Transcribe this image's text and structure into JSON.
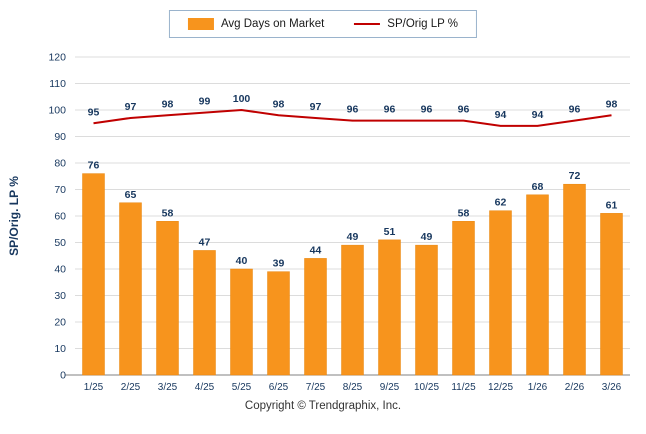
{
  "footer": "Copyright © Trendgraphix, Inc.",
  "colors": {
    "bar": "#F7941D",
    "line": "#C00000",
    "axis_text": "#17375E",
    "gridline": "#DCDCDC",
    "axis_line": "#808080",
    "legend_border": "#9ab3cc"
  },
  "chart_data": {
    "type": "bar+line",
    "title": "",
    "xlabel": "",
    "ylabel": "SP/Orig. LP %",
    "ylim": [
      0,
      120
    ],
    "ytick_step": 10,
    "grid": true,
    "legend_position": "top",
    "categories": [
      "1/25",
      "2/25",
      "3/25",
      "4/25",
      "5/25",
      "6/25",
      "7/25",
      "8/25",
      "9/25",
      "10/25",
      "11/25",
      "12/25",
      "1/26",
      "2/26",
      "3/26"
    ],
    "series": [
      {
        "name": "Avg Days on Market",
        "type": "bar",
        "color": "#F7941D",
        "values": [
          76,
          65,
          58,
          47,
          40,
          39,
          44,
          49,
          51,
          49,
          58,
          62,
          68,
          72,
          61
        ]
      },
      {
        "name": "SP/Orig LP %",
        "type": "line",
        "color": "#C00000",
        "values": [
          95,
          97,
          98,
          99,
          100,
          98,
          97,
          96,
          96,
          96,
          96,
          94,
          94,
          96,
          98
        ]
      }
    ]
  }
}
